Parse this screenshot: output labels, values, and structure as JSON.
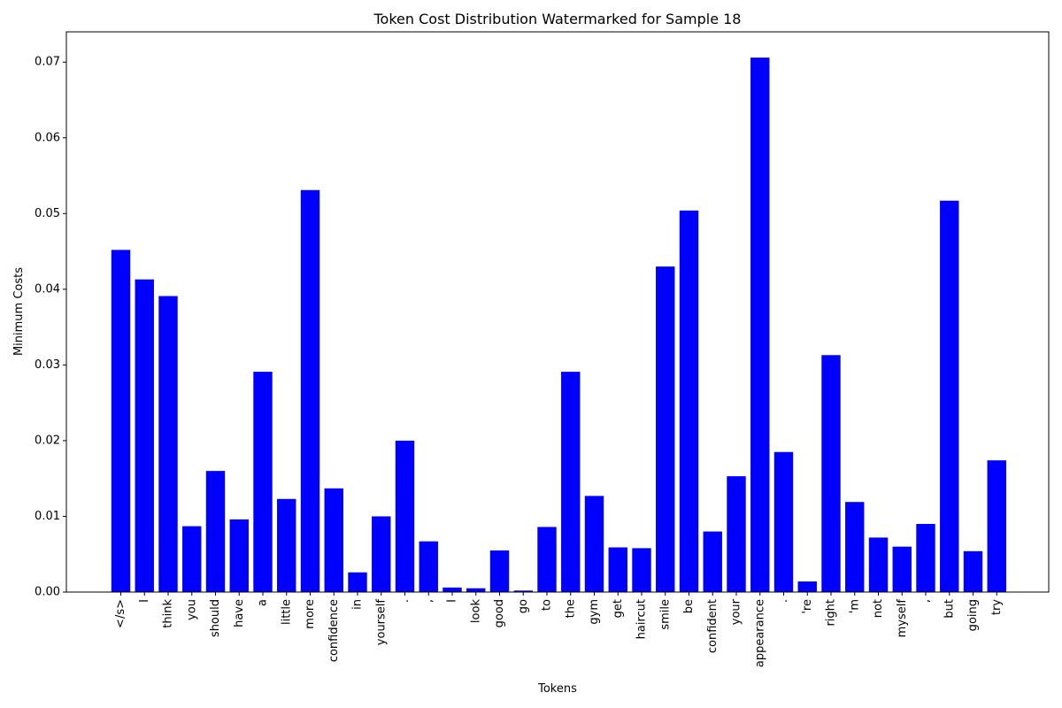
{
  "chart_data": {
    "type": "bar",
    "title": "Token Cost Distribution Watermarked for Sample 18",
    "xlabel": "Tokens",
    "ylabel": "Minimum Costs",
    "ylim": [
      0,
      0.074
    ],
    "yticks": [
      "0.00",
      "0.01",
      "0.02",
      "0.03",
      "0.04",
      "0.05",
      "0.06",
      "0.07"
    ],
    "ytick_values": [
      0,
      0.01,
      0.02,
      0.03,
      0.04,
      0.05,
      0.06,
      0.07
    ],
    "bar_color": "#0000ff",
    "categories": [
      "</s>",
      "I",
      "think",
      "you",
      "should",
      "have",
      "a",
      "little",
      "more",
      "confidence",
      "in",
      "yourself",
      ".",
      ",",
      "I",
      "look",
      "good",
      "go",
      "to",
      "the",
      "gym",
      "get",
      "haircut",
      "smile",
      "be",
      "confident",
      "your",
      "appearance",
      ".",
      "'re",
      "right",
      "'m",
      "not",
      "myself",
      ",",
      "but",
      "going",
      "try"
    ],
    "values": [
      0.0452,
      0.0413,
      0.0391,
      0.0087,
      0.016,
      0.0096,
      0.0291,
      0.0123,
      0.0531,
      0.0137,
      0.0026,
      0.01,
      0.02,
      0.0067,
      0.0006,
      0.0005,
      0.0055,
      0.0002,
      0.0086,
      0.0291,
      0.0127,
      0.0059,
      0.0058,
      0.043,
      0.0504,
      0.008,
      0.0153,
      0.0706,
      0.0185,
      0.0014,
      0.0313,
      0.0119,
      0.0072,
      0.006,
      0.009,
      0.0517,
      0.0054,
      0.0174
    ]
  }
}
